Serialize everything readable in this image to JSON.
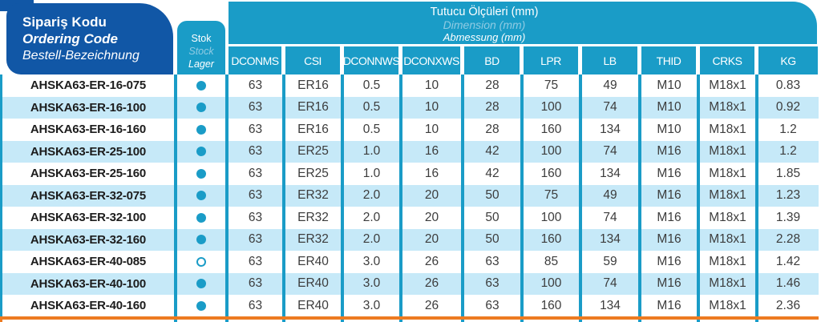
{
  "header": {
    "ordering_code": {
      "line1": "Sipariş Kodu",
      "line2": "Ordering Code",
      "line3": "Bestell-Bezeichnung"
    },
    "stock": {
      "line1": "Stok",
      "line2": "Stock",
      "line3": "Lager"
    },
    "dimensions": {
      "line1": "Tutucu Ölçüleri (mm)",
      "line2": "Dimension (mm)",
      "line3": "Abmessung (mm)"
    }
  },
  "columns": [
    "DCONMS",
    "CSI",
    "DCONNWS",
    "DCONXWS",
    "BD",
    "LPR",
    "LB",
    "THID",
    "CRKS",
    "KG"
  ],
  "rows": [
    {
      "code": "AHSKA63-ER-16-075",
      "stock_dot": "filled",
      "values": [
        "63",
        "ER16",
        "0.5",
        "10",
        "28",
        "75",
        "49",
        "M10",
        "M18x1",
        "0.83"
      ]
    },
    {
      "code": "AHSKA63-ER-16-100",
      "stock_dot": "filled",
      "values": [
        "63",
        "ER16",
        "0.5",
        "10",
        "28",
        "100",
        "74",
        "M10",
        "M18x1",
        "0.92"
      ]
    },
    {
      "code": "AHSKA63-ER-16-160",
      "stock_dot": "filled",
      "values": [
        "63",
        "ER16",
        "0.5",
        "10",
        "28",
        "160",
        "134",
        "M10",
        "M18x1",
        "1.2"
      ]
    },
    {
      "code": "AHSKA63-ER-25-100",
      "stock_dot": "filled",
      "values": [
        "63",
        "ER25",
        "1.0",
        "16",
        "42",
        "100",
        "74",
        "M16",
        "M18x1",
        "1.2"
      ]
    },
    {
      "code": "AHSKA63-ER-25-160",
      "stock_dot": "filled",
      "values": [
        "63",
        "ER25",
        "1.0",
        "16",
        "42",
        "160",
        "134",
        "M16",
        "M18x1",
        "1.85"
      ]
    },
    {
      "code": "AHSKA63-ER-32-075",
      "stock_dot": "filled",
      "values": [
        "63",
        "ER32",
        "2.0",
        "20",
        "50",
        "75",
        "49",
        "M16",
        "M18x1",
        "1.23"
      ]
    },
    {
      "code": "AHSKA63-ER-32-100",
      "stock_dot": "filled",
      "values": [
        "63",
        "ER32",
        "2.0",
        "20",
        "50",
        "100",
        "74",
        "M16",
        "M18x1",
        "1.39"
      ]
    },
    {
      "code": "AHSKA63-ER-32-160",
      "stock_dot": "filled",
      "values": [
        "63",
        "ER32",
        "2.0",
        "20",
        "50",
        "160",
        "134",
        "M16",
        "M18x1",
        "2.28"
      ]
    },
    {
      "code": "AHSKA63-ER-40-085",
      "stock_dot": "outline",
      "values": [
        "63",
        "ER40",
        "3.0",
        "26",
        "63",
        "85",
        "59",
        "M16",
        "M18x1",
        "1.42"
      ]
    },
    {
      "code": "AHSKA63-ER-40-100",
      "stock_dot": "filled",
      "values": [
        "63",
        "ER40",
        "3.0",
        "26",
        "63",
        "100",
        "74",
        "M16",
        "M18x1",
        "1.46"
      ]
    },
    {
      "code": "AHSKA63-ER-40-160",
      "stock_dot": "filled",
      "values": [
        "63",
        "ER40",
        "3.0",
        "26",
        "63",
        "160",
        "134",
        "M16",
        "M18x1",
        "2.36"
      ]
    }
  ],
  "colors": {
    "dark_blue": "#1157A6",
    "teal": "#1A9CC7",
    "row_alt": "#C6E9F8",
    "orange": "#ED7B21",
    "light_italic_text": "#8FCBE3"
  }
}
